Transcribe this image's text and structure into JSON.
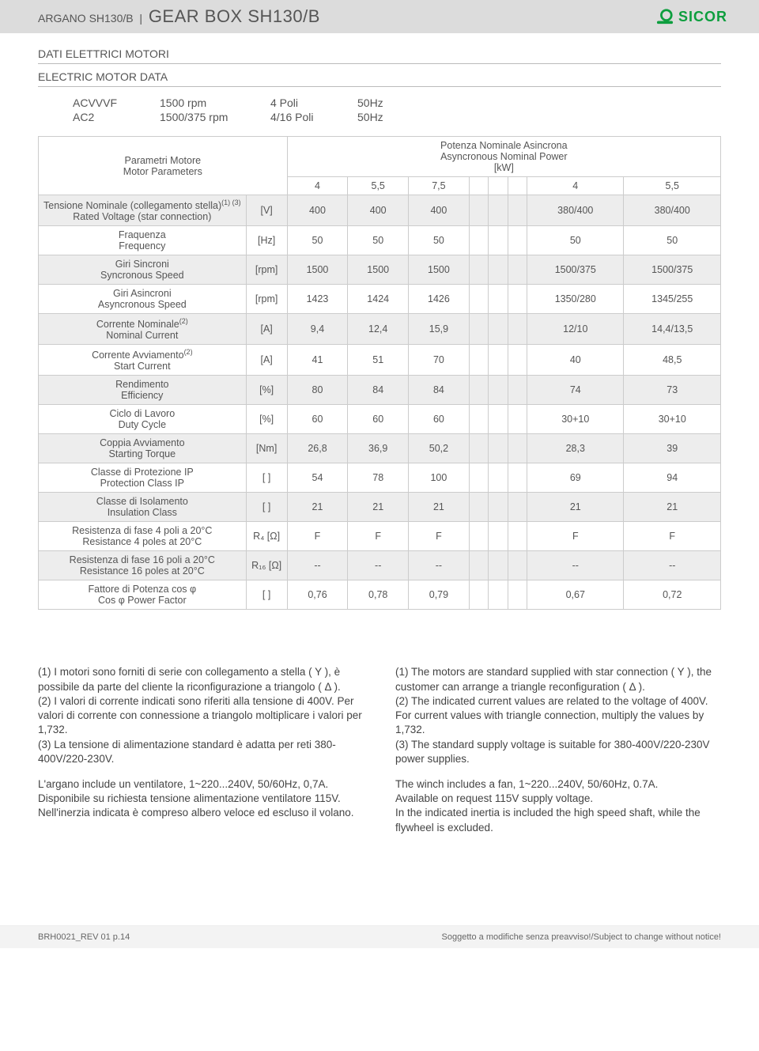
{
  "header": {
    "title_prefix": "ARGANO SH130/B",
    "title_main": "GEAR BOX SH130/B",
    "logo_text": "SICOR",
    "logo_color": "#0d9e3e"
  },
  "section": {
    "title_it": "DATI ELETTRICI MOTORI",
    "title_en": "ELECTRIC MOTOR DATA"
  },
  "specs": {
    "r1c1": "ACVVVF",
    "r1c2": "1500 rpm",
    "r1c3": "4 Poli",
    "r1c4": "50Hz",
    "r2c1": "AC2",
    "r2c2": "1500/375 rpm",
    "r2c3": "4/16 Poli",
    "r2c4": "50Hz"
  },
  "table": {
    "param_header_it": "Parametri Motore",
    "param_header_en": "Motor Parameters",
    "power_header_it": "Potenza Nominale Asincrona",
    "power_header_en": "Asyncronous Nominal Power",
    "power_unit": "[kW]",
    "power_cols": [
      "4",
      "5,5",
      "7,5",
      "",
      "",
      "",
      "4",
      "5,5"
    ],
    "rows": [
      {
        "it": "Tensione Nominale (collegamento stella)",
        "sup": "(1) (3)",
        "en": "Rated Voltage (star connection)",
        "unit": "[V]",
        "vals": [
          "400",
          "400",
          "400",
          "",
          "",
          "",
          "380/400",
          "380/400"
        ]
      },
      {
        "it": "Fraquenza",
        "en": "Frequency",
        "unit": "[Hz]",
        "vals": [
          "50",
          "50",
          "50",
          "",
          "",
          "",
          "50",
          "50"
        ]
      },
      {
        "it": "Giri Sincroni",
        "en": "Syncronous Speed",
        "unit": "[rpm]",
        "vals": [
          "1500",
          "1500",
          "1500",
          "",
          "",
          "",
          "1500/375",
          "1500/375"
        ]
      },
      {
        "it": "Giri Asincroni",
        "en": "Asyncronous Speed",
        "unit": "[rpm]",
        "vals": [
          "1423",
          "1424",
          "1426",
          "",
          "",
          "",
          "1350/280",
          "1345/255"
        ]
      },
      {
        "it": "Corrente Nominale",
        "sup": "(2)",
        "en": "Nominal Current",
        "unit": "[A]",
        "vals": [
          "9,4",
          "12,4",
          "15,9",
          "",
          "",
          "",
          "12/10",
          "14,4/13,5"
        ]
      },
      {
        "it": "Corrente Avviamento",
        "sup": "(2)",
        "en": "Start Current",
        "unit": "[A]",
        "vals": [
          "41",
          "51",
          "70",
          "",
          "",
          "",
          "40",
          "48,5"
        ]
      },
      {
        "it": "Rendimento",
        "en": "Efficiency",
        "unit": "[%]",
        "vals": [
          "80",
          "84",
          "84",
          "",
          "",
          "",
          "74",
          "73"
        ]
      },
      {
        "it": "Ciclo di Lavoro",
        "en": "Duty Cycle",
        "unit": "[%]",
        "vals": [
          "60",
          "60",
          "60",
          "",
          "",
          "",
          "30+10",
          "30+10"
        ]
      },
      {
        "it": "Coppia Avviamento",
        "en": "Starting Torque",
        "unit": "[Nm]",
        "vals": [
          "26,8",
          "36,9",
          "50,2",
          "",
          "",
          "",
          "28,3",
          "39"
        ]
      },
      {
        "it": "Classe di Protezione IP",
        "en": "Protection Class IP",
        "unit": "[ ]",
        "vals": [
          "54",
          "78",
          "100",
          "",
          "",
          "",
          "69",
          "94"
        ]
      },
      {
        "it": "Classe di Isolamento",
        "en": "Insulation Class",
        "unit": "[ ]",
        "vals": [
          "21",
          "21",
          "21",
          "",
          "",
          "",
          "21",
          "21"
        ]
      },
      {
        "it": "Resistenza di fase 4 poli a 20°C",
        "en": "Resistance 4 poles at 20°C",
        "unit": "R₄ [Ω]",
        "vals": [
          "F",
          "F",
          "F",
          "",
          "",
          "",
          "F",
          "F"
        ]
      },
      {
        "it": "Resistenza di fase 16 poli a 20°C",
        "en": "Resistance 16 poles at 20°C",
        "unit": "R₁₆ [Ω]",
        "vals": [
          "--",
          "--",
          "--",
          "",
          "",
          "",
          "--",
          "--"
        ]
      },
      {
        "it": "Fattore di Potenza cos φ",
        "en": "Cos φ Power Factor",
        "unit": "[ ]",
        "vals": [
          "0,76",
          "0,78",
          "0,79",
          "",
          "",
          "",
          "0,67",
          "0,72"
        ]
      }
    ]
  },
  "notes": {
    "left": {
      "p1": "(1) I motori sono forniti di serie con collegamento a stella ( Y ), è possibile  da parte del cliente la riconfigurazione a triangolo ( Δ ).\n(2) I valori di corrente indicati sono riferiti alla tensione di 400V. Per valori di corrente con connessione a triangolo moltiplicare i valori per 1,732.\n(3) La tensione di alimentazione standard è adatta per reti 380-400V/220-230V.",
      "p2": "L'argano include un ventilatore, 1~220...240V, 50/60Hz, 0,7A.\nDisponibile su richiesta tensione alimentazione ventilatore 115V.\nNell'inerzia indicata è compreso albero veloce ed escluso il volano."
    },
    "right": {
      "p1": "(1) The motors are standard supplied with star connection ( Y ), the customer can arrange a triangle reconfiguration ( Δ ).\n(2) The indicated current values are related to the voltage of 400V. For current values with triangle connection, multiply the values by 1,732.\n(3) The standard supply voltage is suitable for 380-400V/220-230V power supplies.",
      "p2": "The winch includes a fan, 1~220...240V, 50/60Hz, 0.7A.\nAvailable on request 115V supply voltage.\nIn the indicated inertia is included the high speed shaft, while the flywheel is excluded."
    }
  },
  "footer": {
    "left": "BRH0021_REV 01 p.14",
    "right": "Soggetto a modifiche senza preavviso!/Subject to change without notice!"
  },
  "colors": {
    "bar_bg": "#dcdcdc",
    "row_alt": "#ededed",
    "border": "#cccccc",
    "text": "#555555"
  }
}
